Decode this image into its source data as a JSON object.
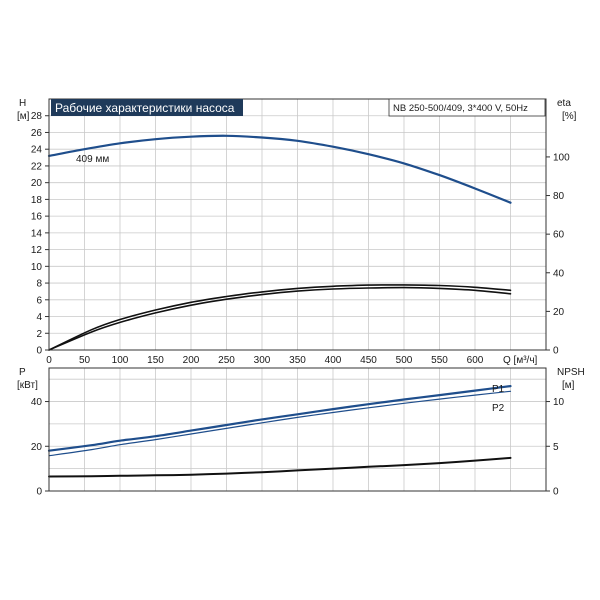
{
  "title": "Рабочие характеристики насоса",
  "info": "NB 250-500/409, 3*400 V, 50Hz",
  "colors": {
    "blue": "#1f4e8c",
    "black": "#111111",
    "grid": "#c9c9c9",
    "title_bg": "#1f3a5a"
  },
  "chart_data": [
    {
      "type": "line",
      "panel": "head-efficiency",
      "xlabel": "Q [м³/ч]",
      "xlim": [
        0,
        700
      ],
      "x_ticks": [
        0,
        50,
        100,
        150,
        200,
        250,
        300,
        350,
        400,
        450,
        500,
        550,
        600
      ],
      "grid": true,
      "left_axis": {
        "label_top": "H",
        "label_unit": "[м]",
        "ylim": [
          0,
          30
        ],
        "ticks": [
          0,
          2,
          4,
          6,
          8,
          10,
          12,
          14,
          16,
          18,
          20,
          22,
          24,
          26,
          28
        ]
      },
      "right_axis": {
        "label_top": "eta",
        "label_unit": "[%]",
        "ylim": [
          0,
          130
        ],
        "ticks": [
          0,
          20,
          40,
          60,
          80,
          100
        ]
      },
      "series": [
        {
          "name": "409 мм",
          "axis": "left",
          "color": "#1f4e8c",
          "width": 2.2,
          "x": [
            0,
            50,
            100,
            150,
            200,
            250,
            300,
            350,
            400,
            450,
            500,
            550,
            600,
            650
          ],
          "y": [
            23.2,
            24.0,
            24.7,
            25.2,
            25.5,
            25.6,
            25.4,
            25.0,
            24.3,
            23.4,
            22.3,
            20.9,
            19.3,
            17.6
          ]
        },
        {
          "axis": "right",
          "color": "#111111",
          "width": 1.6,
          "x": [
            0,
            60,
            100,
            150,
            200,
            250,
            300,
            350,
            400,
            450,
            500,
            550,
            600,
            650
          ],
          "y": [
            0,
            10.5,
            15.8,
            20.7,
            24.7,
            27.7,
            30.1,
            31.9,
            33.0,
            33.6,
            33.7,
            33.4,
            32.5,
            30.9
          ]
        },
        {
          "axis": "right",
          "color": "#111111",
          "width": 1.6,
          "x": [
            0,
            60,
            100,
            150,
            200,
            250,
            300,
            350,
            400,
            450,
            500,
            550,
            600,
            650
          ],
          "y": [
            0,
            9.3,
            14.3,
            19.2,
            23.2,
            26.3,
            28.7,
            30.5,
            31.6,
            32.1,
            32.3,
            31.9,
            30.9,
            29.1
          ]
        }
      ]
    },
    {
      "type": "line",
      "panel": "power-npsh",
      "xlim": [
        0,
        700
      ],
      "grid": true,
      "left_axis": {
        "label_top": "P",
        "label_unit": "[кВт]",
        "ylim": [
          0,
          55
        ],
        "ticks": [
          0,
          20,
          40
        ]
      },
      "right_axis": {
        "label_top": "NPSH",
        "label_unit": "[м]",
        "ylim": [
          0,
          13.75
        ],
        "ticks": [
          0,
          5,
          10
        ]
      },
      "series": [
        {
          "name": "P1",
          "axis": "left",
          "color": "#1f4e8c",
          "width": 2.2,
          "x": [
            0,
            60,
            100,
            150,
            200,
            250,
            300,
            350,
            400,
            450,
            500,
            550,
            600,
            650
          ],
          "y": [
            18.0,
            20.5,
            22.5,
            24.5,
            27.0,
            29.5,
            32.0,
            34.3,
            36.6,
            38.8,
            40.9,
            42.9,
            44.9,
            46.9
          ]
        },
        {
          "name": "P2",
          "axis": "left",
          "color": "#1f4e8c",
          "width": 1.2,
          "x": [
            0,
            60,
            100,
            150,
            200,
            250,
            300,
            350,
            400,
            450,
            500,
            550,
            600,
            650
          ],
          "y": [
            15.8,
            18.5,
            20.7,
            23.0,
            25.5,
            28.0,
            30.5,
            32.9,
            35.1,
            37.2,
            39.2,
            41.1,
            42.9,
            44.6
          ]
        },
        {
          "axis": "right",
          "color": "#111111",
          "width": 2.0,
          "x": [
            0,
            60,
            100,
            150,
            200,
            250,
            300,
            350,
            400,
            450,
            500,
            550,
            600,
            650
          ],
          "y": [
            1.62,
            1.65,
            1.7,
            1.75,
            1.82,
            1.95,
            2.1,
            2.3,
            2.5,
            2.7,
            2.9,
            3.12,
            3.4,
            3.7
          ]
        }
      ]
    }
  ]
}
